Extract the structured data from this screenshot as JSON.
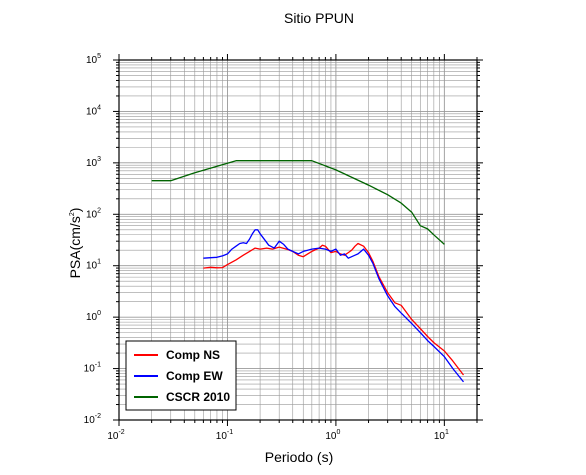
{
  "chart_data": {
    "type": "line",
    "title": "Sitio PPUN",
    "xlabel": "Periodo (s)",
    "ylabel_base": "PSA(cm/s",
    "ylabel_exp": "2",
    "ylabel_close": ")",
    "x_scale": "log",
    "y_scale": "log",
    "xlim": [
      0.01,
      20
    ],
    "ylim": [
      0.01,
      100000
    ],
    "x_ticks": [
      {
        "value": 0.01,
        "base": "10",
        "exp": "-2"
      },
      {
        "value": 0.1,
        "base": "10",
        "exp": "-1"
      },
      {
        "value": 1,
        "base": "10",
        "exp": "0"
      },
      {
        "value": 10,
        "base": "10",
        "exp": "1"
      }
    ],
    "y_ticks": [
      {
        "value": 0.01,
        "base": "10",
        "exp": "-2"
      },
      {
        "value": 0.1,
        "base": "10",
        "exp": "-1"
      },
      {
        "value": 1,
        "base": "10",
        "exp": "0"
      },
      {
        "value": 10,
        "base": "10",
        "exp": "1"
      },
      {
        "value": 100,
        "base": "10",
        "exp": "2"
      },
      {
        "value": 1000,
        "base": "10",
        "exp": "3"
      },
      {
        "value": 10000,
        "base": "10",
        "exp": "4"
      },
      {
        "value": 100000,
        "base": "10",
        "exp": "5"
      }
    ],
    "grid": true,
    "legend_position": "bottom-left",
    "series": [
      {
        "name": "Comp NS",
        "color": "#ff0000",
        "points": [
          [
            0.06,
            9.0
          ],
          [
            0.07,
            9.3
          ],
          [
            0.08,
            9.1
          ],
          [
            0.09,
            9.2
          ],
          [
            0.1,
            10.5
          ],
          [
            0.12,
            13
          ],
          [
            0.14,
            16
          ],
          [
            0.16,
            19
          ],
          [
            0.18,
            22
          ],
          [
            0.2,
            21
          ],
          [
            0.23,
            22
          ],
          [
            0.26,
            21
          ],
          [
            0.3,
            23
          ],
          [
            0.35,
            21
          ],
          [
            0.4,
            19
          ],
          [
            0.45,
            16
          ],
          [
            0.5,
            15
          ],
          [
            0.55,
            17
          ],
          [
            0.6,
            19
          ],
          [
            0.7,
            22
          ],
          [
            0.75,
            25
          ],
          [
            0.8,
            24
          ],
          [
            0.9,
            18
          ],
          [
            1.0,
            19
          ],
          [
            1.1,
            17
          ],
          [
            1.2,
            16
          ],
          [
            1.3,
            18
          ],
          [
            1.4,
            20
          ],
          [
            1.5,
            24
          ],
          [
            1.6,
            27
          ],
          [
            1.8,
            24
          ],
          [
            2.0,
            18
          ],
          [
            2.2,
            12
          ],
          [
            2.5,
            6
          ],
          [
            3.0,
            3.0
          ],
          [
            3.5,
            1.9
          ],
          [
            4.0,
            1.7
          ],
          [
            5.0,
            0.9
          ],
          [
            6.0,
            0.6
          ],
          [
            7.0,
            0.42
          ],
          [
            8.0,
            0.32
          ],
          [
            10.0,
            0.22
          ],
          [
            12.0,
            0.14
          ],
          [
            15.0,
            0.075
          ]
        ]
      },
      {
        "name": "Comp EW",
        "color": "#0000ff",
        "points": [
          [
            0.06,
            14
          ],
          [
            0.07,
            14.3
          ],
          [
            0.08,
            14.6
          ],
          [
            0.09,
            15.5
          ],
          [
            0.1,
            17
          ],
          [
            0.11,
            21
          ],
          [
            0.12,
            24
          ],
          [
            0.13,
            27
          ],
          [
            0.14,
            28
          ],
          [
            0.15,
            27
          ],
          [
            0.16,
            33
          ],
          [
            0.17,
            42
          ],
          [
            0.18,
            50
          ],
          [
            0.19,
            50
          ],
          [
            0.2,
            42
          ],
          [
            0.22,
            32
          ],
          [
            0.24,
            25
          ],
          [
            0.27,
            22
          ],
          [
            0.3,
            30
          ],
          [
            0.33,
            26
          ],
          [
            0.36,
            21
          ],
          [
            0.4,
            19
          ],
          [
            0.45,
            17
          ],
          [
            0.5,
            19
          ],
          [
            0.55,
            20
          ],
          [
            0.6,
            21
          ],
          [
            0.7,
            22
          ],
          [
            0.8,
            21
          ],
          [
            0.9,
            19
          ],
          [
            1.0,
            21
          ],
          [
            1.1,
            16
          ],
          [
            1.2,
            17
          ],
          [
            1.3,
            14
          ],
          [
            1.5,
            16
          ],
          [
            1.6,
            17
          ],
          [
            1.8,
            21
          ],
          [
            2.0,
            16
          ],
          [
            2.2,
            11
          ],
          [
            2.5,
            5.5
          ],
          [
            3.0,
            2.6
          ],
          [
            3.5,
            1.6
          ],
          [
            4.0,
            1.2
          ],
          [
            5.0,
            0.75
          ],
          [
            6.0,
            0.5
          ],
          [
            7.0,
            0.35
          ],
          [
            8.0,
            0.27
          ],
          [
            10.0,
            0.17
          ],
          [
            12.0,
            0.1
          ],
          [
            15.0,
            0.055
          ]
        ]
      },
      {
        "name": "CSCR 2010",
        "color": "#006400",
        "points": [
          [
            0.02,
            450
          ],
          [
            0.03,
            450
          ],
          [
            0.05,
            640
          ],
          [
            0.12,
            1100
          ],
          [
            0.6,
            1100
          ],
          [
            1.0,
            730
          ],
          [
            2.0,
            370
          ],
          [
            3.0,
            240
          ],
          [
            4.0,
            165
          ],
          [
            5.0,
            110
          ],
          [
            6.0,
            60
          ],
          [
            7.0,
            52
          ],
          [
            8.0,
            40
          ],
          [
            10.0,
            26
          ]
        ]
      }
    ]
  }
}
